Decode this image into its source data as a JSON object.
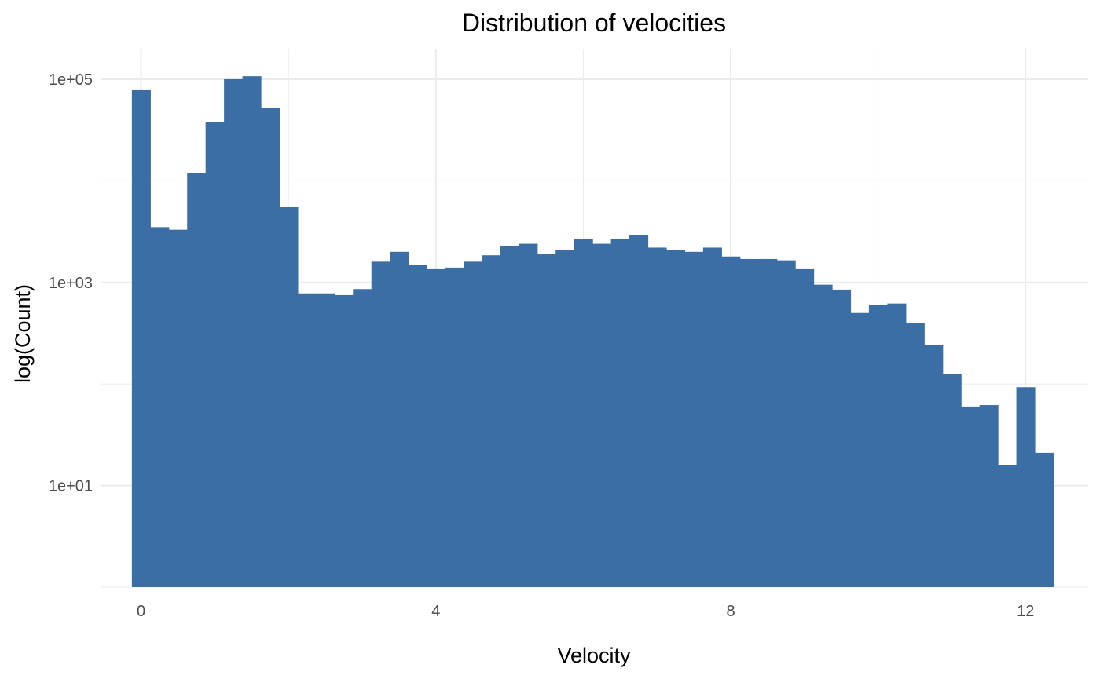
{
  "chart_data": {
    "type": "bar",
    "title": "Distribution of velocities",
    "xlabel": "Velocity",
    "ylabel": "log(Count)",
    "y_scale": "log10",
    "bar_color": "#3a6ea5",
    "grid": true,
    "legend": "none",
    "xlim": [
      -0.55,
      12.85
    ],
    "ylim": [
      1,
      200000
    ],
    "x_ticks": [
      0,
      4,
      8,
      12
    ],
    "x_tick_labels": [
      "0",
      "4",
      "8",
      "12"
    ],
    "x_minor_ticks": [
      2,
      6,
      10
    ],
    "y_ticks": [
      10,
      1000,
      100000
    ],
    "y_tick_labels": [
      "1e+01",
      "1e+03",
      "1e+05"
    ],
    "y_minor_ticks": [
      1,
      100,
      10000
    ],
    "bin_width": 0.25,
    "bin_centers": [
      0,
      0.25,
      0.5,
      0.75,
      1,
      1.25,
      1.5,
      1.75,
      2,
      2.25,
      2.5,
      2.75,
      3,
      3.25,
      3.5,
      3.75,
      4,
      4.25,
      4.5,
      4.75,
      5,
      5.25,
      5.5,
      5.75,
      6,
      6.25,
      6.5,
      6.75,
      7,
      7.25,
      7.5,
      7.75,
      8,
      8.25,
      8.5,
      8.75,
      9,
      9.25,
      9.5,
      9.75,
      10,
      10.25,
      10.5,
      10.75,
      11,
      11.25,
      11.5,
      11.75,
      12,
      12.25
    ],
    "values": [
      78000,
      3500,
      3300,
      12000,
      38000,
      100000,
      107000,
      52000,
      5500,
      780,
      780,
      750,
      860,
      1600,
      2000,
      1500,
      1350,
      1400,
      1600,
      1850,
      2300,
      2400,
      1900,
      2100,
      2700,
      2400,
      2700,
      2900,
      2200,
      2100,
      2000,
      2200,
      1800,
      1700,
      1700,
      1650,
      1350,
      950,
      850,
      500,
      600,
      620,
      400,
      240,
      125,
      60,
      62,
      16,
      93,
      21
    ]
  }
}
